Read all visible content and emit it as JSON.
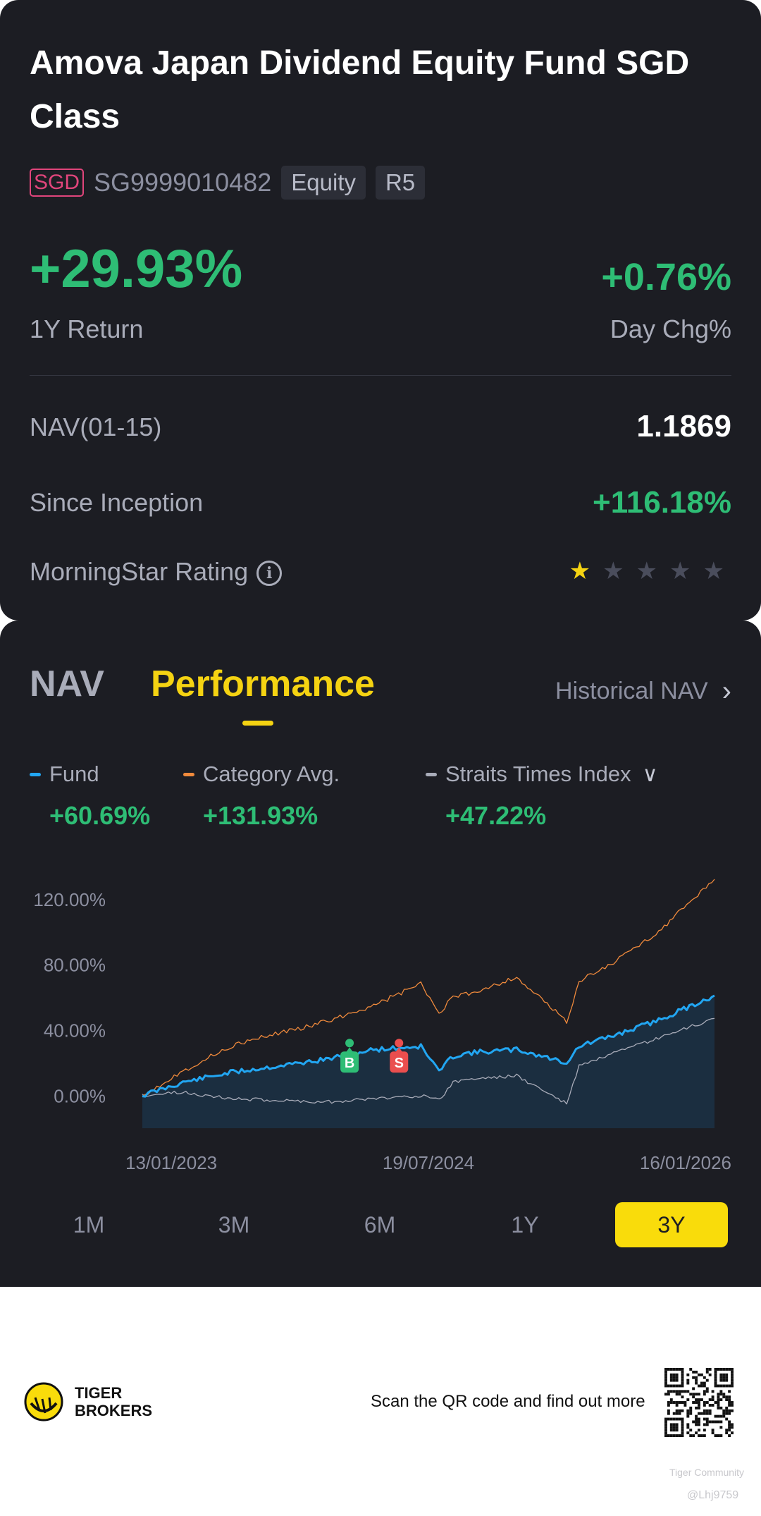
{
  "fund": {
    "title": "Amova Japan Dividend Equity Fund SGD Class",
    "currency": "SGD",
    "isin": "SG9999010482",
    "asset_class": "Equity",
    "risk": "R5"
  },
  "returns": {
    "one_year_value": "+29.93%",
    "one_year_label": "1Y Return",
    "day_change_value": "+0.76%",
    "day_change_label": "Day Chg%"
  },
  "details": {
    "nav_label": "NAV(01-15)",
    "nav_value": "1.1869",
    "since_inception_label": "Since Inception",
    "since_inception_value": "+116.18%",
    "rating_label": "MorningStar Rating",
    "rating_stars": 1,
    "rating_max": 5
  },
  "tabs": {
    "nav": "NAV",
    "performance": "Performance",
    "historical_nav": "Historical NAV"
  },
  "legend": [
    {
      "name": "Fund",
      "value": "+60.69%",
      "color": "#22a6f2"
    },
    {
      "name": "Category Avg.",
      "value": "+131.93%",
      "color": "#f08a3c"
    },
    {
      "name": "Straits Times Index",
      "value": "+47.22%",
      "color": "#a9acb9"
    }
  ],
  "chart_data": {
    "type": "line",
    "y_ticks": [
      "120.00%",
      "80.00%",
      "40.00%",
      "0.00%"
    ],
    "x_ticks": [
      "13/01/2023",
      "19/07/2024",
      "16/01/2026"
    ],
    "ylim": [
      -20,
      135
    ],
    "series": [
      {
        "name": "Fund",
        "color": "#22a6f2",
        "x": [
          "2023-01-13",
          "2023-04-01",
          "2023-07-01",
          "2023-10-01",
          "2024-01-01",
          "2024-04-01",
          "2024-07-01",
          "2024-08-05",
          "2024-09-01",
          "2024-10-01",
          "2025-01-01",
          "2025-04-07",
          "2025-05-01",
          "2025-07-01",
          "2025-10-01",
          "2026-01-16"
        ],
        "y": [
          0,
          8,
          14,
          18,
          22,
          28,
          30,
          15,
          24,
          26,
          28,
          20,
          30,
          36,
          46,
          61
        ]
      },
      {
        "name": "Category Avg.",
        "color": "#f08a3c",
        "x": [
          "2023-01-13",
          "2023-04-01",
          "2023-07-01",
          "2023-10-01",
          "2024-01-01",
          "2024-04-01",
          "2024-07-01",
          "2024-08-05",
          "2024-09-01",
          "2024-10-01",
          "2025-01-01",
          "2025-04-07",
          "2025-05-01",
          "2025-07-01",
          "2025-10-01",
          "2026-01-16"
        ],
        "y": [
          0,
          15,
          30,
          38,
          45,
          55,
          68,
          50,
          60,
          62,
          72,
          45,
          70,
          80,
          100,
          132
        ]
      },
      {
        "name": "Straits Times Index",
        "color": "#a9acb9",
        "x": [
          "2023-01-13",
          "2023-04-01",
          "2023-07-01",
          "2023-10-01",
          "2024-01-01",
          "2024-04-01",
          "2024-07-01",
          "2024-08-05",
          "2024-09-01",
          "2024-10-01",
          "2025-01-01",
          "2025-04-07",
          "2025-05-01",
          "2025-07-01",
          "2025-10-01",
          "2026-01-16"
        ],
        "y": [
          0,
          2,
          -2,
          -3,
          -4,
          -2,
          0,
          -3,
          8,
          10,
          12,
          -5,
          18,
          25,
          35,
          47
        ]
      }
    ],
    "markers": [
      {
        "label": "B",
        "date": "2024-02-15",
        "color": "#2ebd75"
      },
      {
        "label": "S",
        "date": "2024-05-20",
        "color": "#ea4e4e"
      }
    ]
  },
  "ranges": {
    "items": [
      "1M",
      "3M",
      "6M",
      "1Y",
      "3Y"
    ],
    "active": "3Y"
  },
  "footer": {
    "brand_line1": "TIGER",
    "brand_line2": "BROKERS",
    "scan_text": "Scan the QR code and find out more",
    "watermark_community": "Tiger Community",
    "watermark_user": "@Lhj9759"
  }
}
